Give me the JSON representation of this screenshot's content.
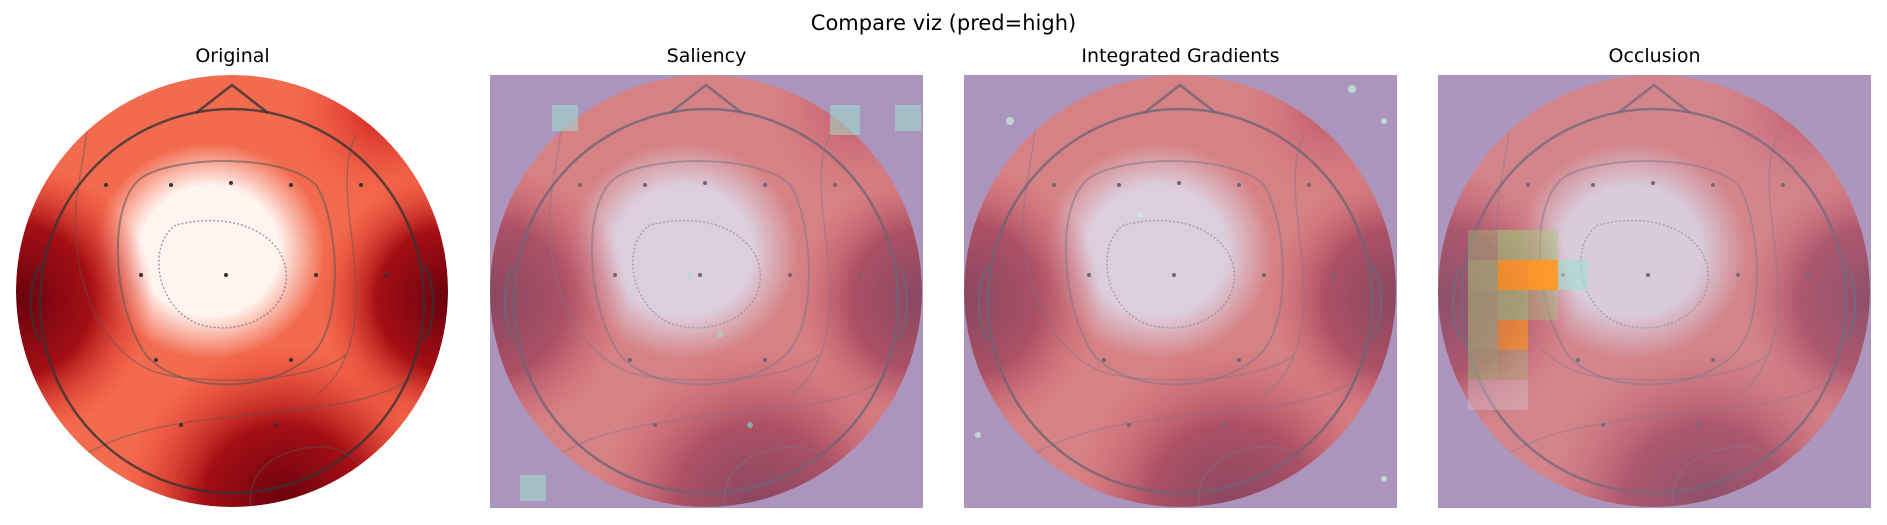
{
  "figure": {
    "suptitle": "Compare viz (pred=high)",
    "panels": [
      {
        "title": "Original"
      },
      {
        "title": "Saliency"
      },
      {
        "title": "Integrated Gradients"
      },
      {
        "title": "Occlusion"
      }
    ]
  },
  "colors": {
    "heatmap_low": "#fff5f0",
    "heatmap_mid": "#ef3b2c",
    "heatmap_high": "#67000d",
    "overlay_tint": "#b4a0c8",
    "occlusion_hot": "#ff9a1f",
    "occlusion_green": "#9fd07a"
  }
}
